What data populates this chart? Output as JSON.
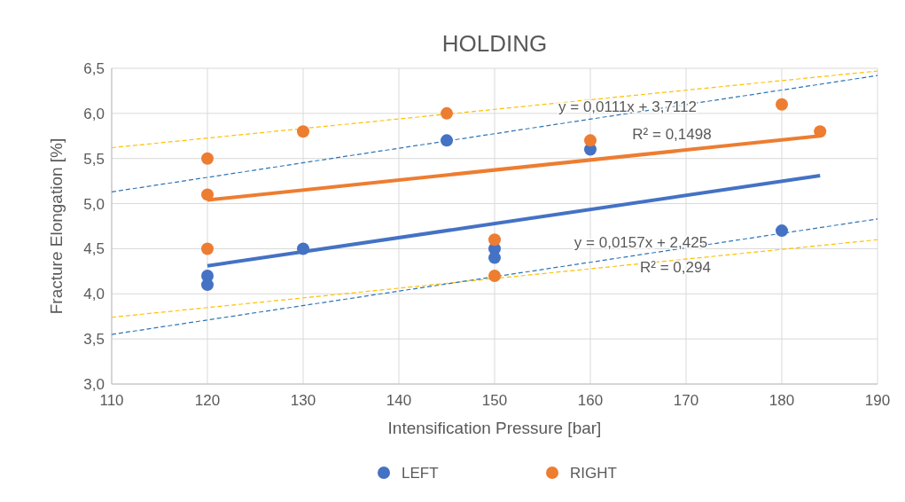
{
  "chart_data": {
    "type": "scatter",
    "title": "HOLDING",
    "xlabel": "Intensification Pressure [bar]",
    "ylabel": "Fracture Elongation [%]",
    "xlim": [
      110,
      190
    ],
    "xticks": [
      110,
      120,
      130,
      140,
      150,
      160,
      170,
      180,
      190
    ],
    "ylim": [
      3,
      6.5
    ],
    "yticks": [
      {
        "value": 3,
        "label": "3,0"
      },
      {
        "value": 3.5,
        "label": "3,5"
      },
      {
        "value": 4,
        "label": "4,0"
      },
      {
        "value": 4.5,
        "label": "4,5"
      },
      {
        "value": 5,
        "label": "5,0"
      },
      {
        "value": 5.5,
        "label": "5,5"
      },
      {
        "value": 6,
        "label": "6,0"
      },
      {
        "value": 6.5,
        "label": "6,5"
      }
    ],
    "grid": true,
    "legend": "bottom",
    "marker": "circle",
    "series": [
      {
        "type": "line",
        "color": "#ffc000",
        "line_style": "dashed",
        "marker": "none",
        "x": [
          110,
          190
        ],
        "values": [
          5.62,
          6.47
        ]
      },
      {
        "type": "line",
        "color": "#ffc000",
        "line_style": "dashed",
        "marker": "none",
        "x": [
          110,
          190
        ],
        "values": [
          3.74,
          4.6
        ]
      },
      {
        "type": "line",
        "color": "#2e75b6",
        "line_style": "dashed",
        "marker": "none",
        "x": [
          110,
          190
        ],
        "values": [
          5.13,
          6.42
        ]
      },
      {
        "type": "line",
        "color": "#2e75b6",
        "line_style": "dashed",
        "marker": "none",
        "x": [
          110,
          190
        ],
        "values": [
          3.55,
          4.83
        ]
      },
      {
        "type": "line",
        "color": "#4472c4",
        "line_style": "solid",
        "marker": "none",
        "x": [
          120,
          184
        ],
        "values": [
          4.31,
          5.31
        ]
      },
      {
        "type": "line",
        "color": "#ed7d31",
        "line_style": "solid",
        "marker": "none",
        "x": [
          120,
          184
        ],
        "values": [
          5.04,
          5.75
        ]
      },
      {
        "name": "LEFT",
        "color": "#4472c4",
        "x": [
          120,
          120,
          130,
          145,
          150,
          150,
          160,
          180
        ],
        "values": [
          4.2,
          4.1,
          4.5,
          5.7,
          4.5,
          4.4,
          5.6,
          4.7
        ]
      },
      {
        "name": "RIGHT",
        "color": "#ed7d31",
        "x": [
          120,
          120,
          120,
          130,
          145,
          150,
          150,
          160,
          180,
          184
        ],
        "values": [
          5.5,
          5.1,
          4.5,
          5.8,
          6.0,
          4.6,
          4.2,
          5.7,
          6.1,
          5.8
        ]
      }
    ],
    "annotations": [
      "y = 0,0111x + 3,7112",
      "R² = 0,1498",
      "y = 0,0157x + 2,425",
      "R² = 0,294"
    ]
  }
}
